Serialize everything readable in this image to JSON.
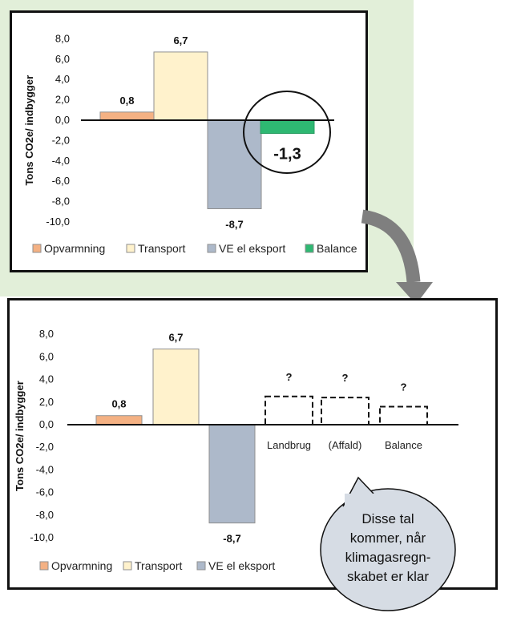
{
  "chart_data": [
    {
      "type": "bar",
      "ylabel": "Tons CO2e/ indbygger",
      "ylim": [
        -10,
        8
      ],
      "yticks": [
        "8,0",
        "6,0",
        "4,0",
        "2,0",
        "0,0",
        "-2,0",
        "-4,0",
        "-6,0",
        "-8,0",
        "-10,0"
      ],
      "series": [
        {
          "name": "Opvarmning",
          "value": 0.8,
          "label": "0,8",
          "color": "#f4b183"
        },
        {
          "name": "Transport",
          "value": 6.7,
          "label": "6,7",
          "color": "#fff2cc"
        },
        {
          "name": "VE el eksport",
          "value": -8.7,
          "label": "-8,7",
          "color": "#adb9ca"
        },
        {
          "name": "Balance",
          "value": -1.3,
          "label": "-1,3",
          "color": "#2eb872"
        }
      ],
      "legend": {
        "position": "bottom",
        "items": [
          "Opvarmning",
          "Transport",
          "VE el eksport",
          "Balance"
        ]
      },
      "annotation": "circle around Balance value"
    },
    {
      "type": "bar",
      "ylabel": "Tons CO2e/ indbygger",
      "ylim": [
        -10,
        8
      ],
      "yticks": [
        "8,0",
        "6,0",
        "4,0",
        "2,0",
        "0,0",
        "-2,0",
        "-4,0",
        "-6,0",
        "-8,0",
        "-10,0"
      ],
      "series": [
        {
          "name": "Opvarmning",
          "value": 0.8,
          "label": "0,8",
          "color": "#f4b183"
        },
        {
          "name": "Transport",
          "value": 6.7,
          "label": "6,7",
          "color": "#fff2cc"
        },
        {
          "name": "VE el eksport",
          "value": -8.7,
          "label": "-8,7",
          "color": "#adb9ca"
        }
      ],
      "placeholders": [
        {
          "category": "Landbrug",
          "mark": "?",
          "value": 2.5
        },
        {
          "category": "(Affald)",
          "mark": "?",
          "value": 2.4
        },
        {
          "category": "Balance",
          "mark": "?",
          "value": 1.6
        }
      ],
      "legend": {
        "position": "bottom",
        "items": [
          "Opvarmning",
          "Transport",
          "VE el eksport"
        ]
      }
    }
  ],
  "callout": {
    "lines": [
      "Disse tal",
      "kommer, når",
      "klimagasregn-",
      "skabet er klar"
    ],
    "color": "#d6dce4"
  }
}
